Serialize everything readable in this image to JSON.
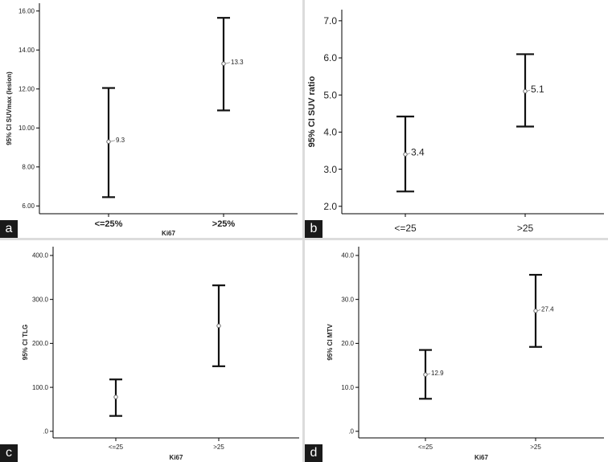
{
  "chart_data": [
    {
      "type": "errorbar",
      "panel_label": "a",
      "categories": [
        "<=25%",
        ">25%"
      ],
      "mean": [
        9.3,
        13.3
      ],
      "ci_lower": [
        6.45,
        10.9
      ],
      "ci_upper": [
        12.05,
        15.65
      ],
      "point_labels": [
        "9.3",
        "13.3"
      ],
      "ylabel": "95% CI SUVmax (lesion)",
      "xlabel": "Ki67",
      "yticks": [
        "6.00",
        "8.00",
        "10.00",
        "12.00",
        "14.00",
        "16.00"
      ],
      "ylim": [
        5.6,
        16.4
      ]
    },
    {
      "type": "errorbar",
      "panel_label": "b",
      "categories": [
        "<=25",
        ">25"
      ],
      "mean": [
        3.4,
        5.1
      ],
      "ci_lower": [
        2.4,
        4.15
      ],
      "ci_upper": [
        4.42,
        6.1
      ],
      "point_labels": [
        "3.4",
        "5.1"
      ],
      "ylabel": "95% CI SUV ratio",
      "xlabel": "",
      "yticks": [
        "2.0",
        "3.0",
        "4.0",
        "5.0",
        "6.0",
        "7.0"
      ],
      "ylim": [
        1.8,
        7.3
      ]
    },
    {
      "type": "errorbar",
      "panel_label": "c",
      "categories": [
        "<=25",
        ">25"
      ],
      "mean": [
        78,
        240
      ],
      "ci_lower": [
        35,
        148
      ],
      "ci_upper": [
        118,
        332
      ],
      "point_labels": [
        "",
        ""
      ],
      "ylabel": "95% CI TLG",
      "xlabel": "Ki67",
      "yticks": [
        ".0",
        "100.0",
        "200.0",
        "300.0",
        "400.0"
      ],
      "ylim": [
        -15,
        420
      ]
    },
    {
      "type": "errorbar",
      "panel_label": "d",
      "categories": [
        "<=25",
        ">25"
      ],
      "mean": [
        12.9,
        27.4
      ],
      "ci_lower": [
        7.4,
        19.2
      ],
      "ci_upper": [
        18.5,
        35.6
      ],
      "point_labels": [
        "12.9",
        "27.4"
      ],
      "ylabel": "95% CI MTV",
      "xlabel": "Ki67",
      "yticks": [
        ".0",
        "10.0",
        "20.0",
        "30.0",
        "40.0"
      ],
      "ylim": [
        -1.5,
        42
      ]
    }
  ]
}
